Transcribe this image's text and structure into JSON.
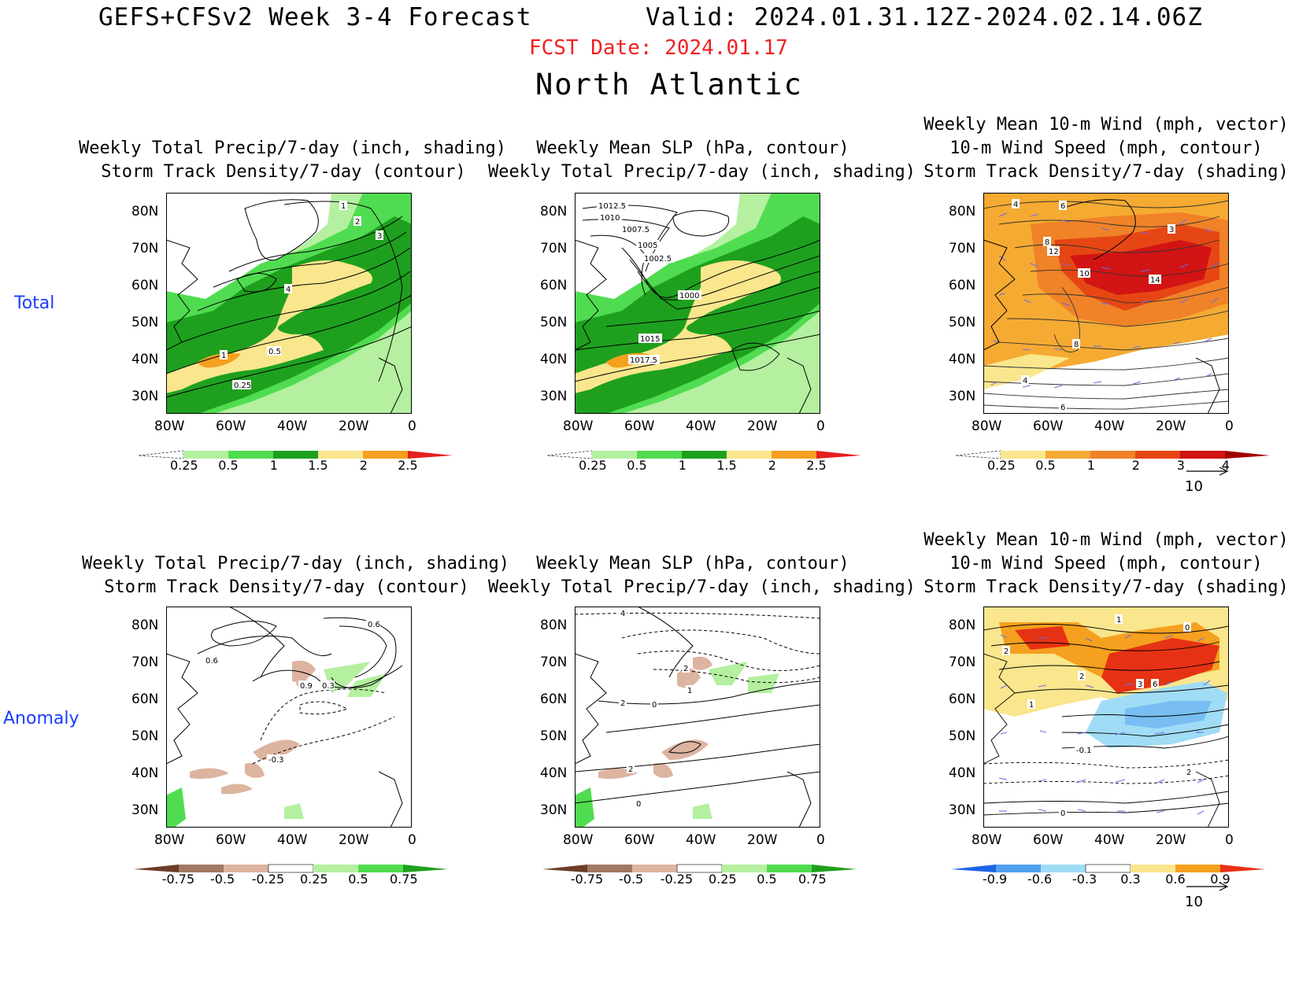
{
  "header": {
    "title": "GEFS+CFSv2 Week 3-4 Forecast",
    "valid": "Valid: 2024.01.31.12Z-2024.02.14.06Z",
    "fcst_date": "FCST Date: 2024.01.17",
    "region": "North Atlantic"
  },
  "rows": {
    "total": "Total",
    "anomaly": "Anomaly"
  },
  "panels": {
    "p1": {
      "line1": "Weekly Total Precip/7-day (inch, shading)",
      "line2": "Storm Track Density/7-day (contour)"
    },
    "p2": {
      "line1": "Weekly Mean SLP (hPa, contour)",
      "line2": "Weekly Total Precip/7-day (inch, shading)"
    },
    "p3": {
      "line1": "Weekly Mean 10-m Wind (mph, vector)",
      "line2": "10-m Wind Speed (mph, contour)",
      "line3": "Storm Track Density/7-day (shading)"
    }
  },
  "axes": {
    "lat": [
      "80N",
      "70N",
      "60N",
      "50N",
      "40N",
      "30N"
    ],
    "lon": [
      "80W",
      "60W",
      "40W",
      "20W",
      "0"
    ]
  },
  "colorbars": {
    "precip": {
      "labels": [
        "0.25",
        "0.5",
        "1",
        "1.5",
        "2",
        "2.5"
      ],
      "colors": [
        "#ffffff",
        "#b4f0a0",
        "#50dc50",
        "#1ea01e",
        "#fae68c",
        "#f5a01e",
        "#e61e1e"
      ]
    },
    "track": {
      "labels": [
        "0.25",
        "0.5",
        "1",
        "2",
        "3",
        "4"
      ],
      "colors": [
        "#ffffff",
        "#fae68c",
        "#f5aa32",
        "#f08228",
        "#e64614",
        "#d21414",
        "#a00000"
      ]
    },
    "anom": {
      "labels": [
        "-0.75",
        "-0.5",
        "-0.25",
        "0.25",
        "0.5",
        "0.75"
      ],
      "colors": [
        "#6e3c28",
        "#a07864",
        "#dcb4a0",
        "#ffffff",
        "#b4f0a0",
        "#50dc50",
        "#1ea01e"
      ]
    },
    "trackanom": {
      "labels": [
        "-0.9",
        "-0.6",
        "-0.3",
        "0.3",
        "0.6",
        "0.9"
      ],
      "colors": [
        "#1e64e6",
        "#50a0f0",
        "#a0dcf5",
        "#ffffff",
        "#fae68c",
        "#f5a01e",
        "#e63214"
      ]
    }
  },
  "vector_ref": "10",
  "contour_labels": {
    "p1": [
      "1",
      "2",
      "3",
      "4",
      "1",
      "0.5",
      "0.25"
    ],
    "p2": [
      "1012.5",
      "1010",
      "1007.5",
      "1005",
      "1002.5",
      "1000",
      "1015",
      "1017.5"
    ],
    "p3": [
      "4",
      "6",
      "8",
      "12",
      "3",
      "10",
      "14",
      "8",
      "4",
      "6"
    ],
    "p4": [
      "0.6",
      "0.6",
      "0.9",
      "0.3",
      "-0.3"
    ],
    "p5": [
      "4",
      "2",
      "1",
      "2",
      "0",
      "2",
      "0"
    ],
    "p6": [
      "1",
      "0",
      "2",
      "2",
      "3",
      "6",
      "1",
      "-0.1",
      "2",
      "0"
    ]
  }
}
